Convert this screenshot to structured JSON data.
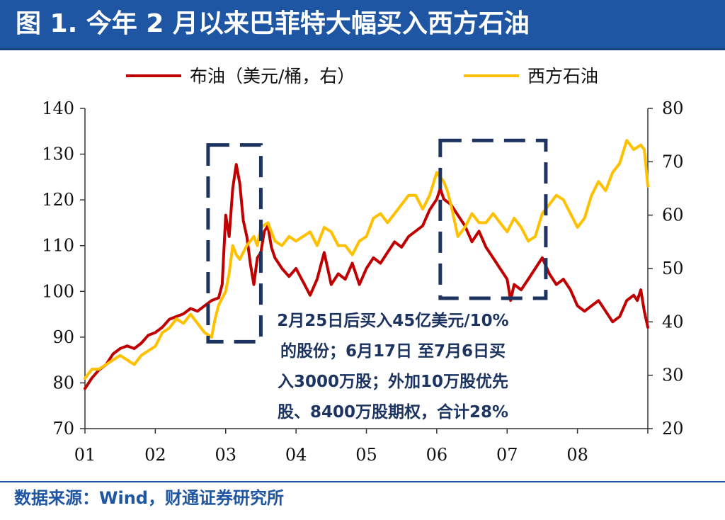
{
  "header": {
    "title": "图 1. 今年 2 月以来巴菲特大幅买入西方石油"
  },
  "footer": {
    "source": "数据来源：Wind，财通证券研究所"
  },
  "colors": {
    "title_bg": "#1f56a3",
    "brent": "#c00000",
    "oxy": "#ffc000",
    "annotation": "#1d3461",
    "axis": "#333333"
  },
  "chart_data": {
    "type": "line",
    "title": "",
    "legend_position": "top",
    "grid": false,
    "x_ticks": [
      "01",
      "02",
      "03",
      "04",
      "05",
      "06",
      "07",
      "08"
    ],
    "x_range": [
      1,
      9
    ],
    "y_left": {
      "range": [
        70,
        140
      ],
      "ticks": [
        70,
        80,
        90,
        100,
        110,
        120,
        130,
        140
      ]
    },
    "y_right": {
      "range": [
        20,
        80
      ],
      "ticks": [
        20,
        30,
        40,
        50,
        60,
        70,
        80
      ]
    },
    "series": [
      {
        "name": "布油（美元/桶，右）",
        "axis": "right",
        "color": "#c00000",
        "points": [
          [
            1.0,
            27.5
          ],
          [
            1.1,
            29.5
          ],
          [
            1.2,
            31
          ],
          [
            1.3,
            32
          ],
          [
            1.4,
            34
          ],
          [
            1.5,
            35
          ],
          [
            1.6,
            35.5
          ],
          [
            1.7,
            35
          ],
          [
            1.8,
            36
          ],
          [
            1.9,
            37.5
          ],
          [
            2.0,
            38
          ],
          [
            2.1,
            39
          ],
          [
            2.2,
            40.5
          ],
          [
            2.3,
            41
          ],
          [
            2.4,
            41.5
          ],
          [
            2.5,
            42.5
          ],
          [
            2.6,
            42
          ],
          [
            2.7,
            43
          ],
          [
            2.8,
            44
          ],
          [
            2.9,
            44.5
          ],
          [
            2.95,
            47
          ],
          [
            3.0,
            60
          ],
          [
            3.05,
            56
          ],
          [
            3.1,
            65
          ],
          [
            3.15,
            69.5
          ],
          [
            3.2,
            66
          ],
          [
            3.25,
            59
          ],
          [
            3.3,
            56
          ],
          [
            3.35,
            51
          ],
          [
            3.4,
            47
          ],
          [
            3.45,
            52
          ],
          [
            3.5,
            53
          ],
          [
            3.55,
            57
          ],
          [
            3.6,
            58
          ],
          [
            3.65,
            54
          ],
          [
            3.7,
            52
          ],
          [
            3.8,
            50
          ],
          [
            3.9,
            48.5
          ],
          [
            4.0,
            50
          ],
          [
            4.1,
            47.5
          ],
          [
            4.2,
            45
          ],
          [
            4.3,
            48
          ],
          [
            4.4,
            53
          ],
          [
            4.5,
            47
          ],
          [
            4.6,
            49
          ],
          [
            4.7,
            48
          ],
          [
            4.8,
            51
          ],
          [
            4.9,
            47
          ],
          [
            5.0,
            50
          ],
          [
            5.1,
            52
          ],
          [
            5.2,
            51
          ],
          [
            5.3,
            53
          ],
          [
            5.4,
            55
          ],
          [
            5.5,
            54
          ],
          [
            5.6,
            56
          ],
          [
            5.7,
            57
          ],
          [
            5.8,
            58
          ],
          [
            5.9,
            61
          ],
          [
            6.0,
            63
          ],
          [
            6.05,
            65
          ],
          [
            6.1,
            63
          ],
          [
            6.2,
            62
          ],
          [
            6.3,
            60
          ],
          [
            6.4,
            58
          ],
          [
            6.5,
            55
          ],
          [
            6.6,
            57
          ],
          [
            6.7,
            54
          ],
          [
            6.8,
            52
          ],
          [
            6.9,
            50
          ],
          [
            7.0,
            48
          ],
          [
            7.05,
            44
          ],
          [
            7.1,
            47
          ],
          [
            7.2,
            46
          ],
          [
            7.3,
            48
          ],
          [
            7.4,
            50
          ],
          [
            7.5,
            52
          ],
          [
            7.6,
            49
          ],
          [
            7.7,
            47
          ],
          [
            7.8,
            48
          ],
          [
            7.9,
            46
          ],
          [
            8.0,
            43
          ],
          [
            8.1,
            42
          ],
          [
            8.2,
            43
          ],
          [
            8.3,
            44
          ],
          [
            8.4,
            42
          ],
          [
            8.5,
            40
          ],
          [
            8.6,
            41
          ],
          [
            8.7,
            44
          ],
          [
            8.8,
            45
          ],
          [
            8.85,
            44
          ],
          [
            8.9,
            46
          ],
          [
            8.95,
            42
          ],
          [
            9.0,
            39
          ]
        ]
      },
      {
        "name": "西方石油",
        "axis": "left",
        "color": "#ffc000",
        "points": [
          [
            1.0,
            81
          ],
          [
            1.1,
            83
          ],
          [
            1.2,
            83
          ],
          [
            1.3,
            84
          ],
          [
            1.4,
            85
          ],
          [
            1.5,
            86
          ],
          [
            1.6,
            85
          ],
          [
            1.7,
            84
          ],
          [
            1.8,
            86
          ],
          [
            1.9,
            87
          ],
          [
            2.0,
            88
          ],
          [
            2.1,
            91
          ],
          [
            2.2,
            92
          ],
          [
            2.3,
            94
          ],
          [
            2.4,
            93
          ],
          [
            2.5,
            95
          ],
          [
            2.6,
            93
          ],
          [
            2.7,
            91
          ],
          [
            2.8,
            90
          ],
          [
            2.85,
            94
          ],
          [
            2.9,
            97
          ],
          [
            3.0,
            100
          ],
          [
            3.05,
            104
          ],
          [
            3.1,
            110
          ],
          [
            3.15,
            108
          ],
          [
            3.2,
            107
          ],
          [
            3.3,
            110
          ],
          [
            3.4,
            112
          ],
          [
            3.45,
            110
          ],
          [
            3.5,
            114
          ],
          [
            3.6,
            115
          ],
          [
            3.7,
            111
          ],
          [
            3.8,
            110
          ],
          [
            3.9,
            112
          ],
          [
            4.0,
            111
          ],
          [
            4.1,
            112
          ],
          [
            4.2,
            113
          ],
          [
            4.3,
            110
          ],
          [
            4.4,
            114
          ],
          [
            4.5,
            113
          ],
          [
            4.6,
            110
          ],
          [
            4.7,
            110
          ],
          [
            4.8,
            108
          ],
          [
            4.9,
            111
          ],
          [
            5.0,
            112
          ],
          [
            5.1,
            116
          ],
          [
            5.2,
            117
          ],
          [
            5.3,
            115
          ],
          [
            5.4,
            117
          ],
          [
            5.5,
            119
          ],
          [
            5.6,
            121
          ],
          [
            5.7,
            121
          ],
          [
            5.8,
            118
          ],
          [
            5.9,
            121
          ],
          [
            6.0,
            126
          ],
          [
            6.05,
            125
          ],
          [
            6.1,
            124
          ],
          [
            6.15,
            122
          ],
          [
            6.2,
            119
          ],
          [
            6.3,
            112
          ],
          [
            6.4,
            114
          ],
          [
            6.5,
            117
          ],
          [
            6.6,
            115
          ],
          [
            6.7,
            115
          ],
          [
            6.8,
            117
          ],
          [
            6.9,
            115
          ],
          [
            7.0,
            113
          ],
          [
            7.1,
            116
          ],
          [
            7.2,
            114
          ],
          [
            7.3,
            111
          ],
          [
            7.4,
            112
          ],
          [
            7.5,
            117
          ],
          [
            7.6,
            119
          ],
          [
            7.7,
            121
          ],
          [
            7.8,
            120
          ],
          [
            7.9,
            117
          ],
          [
            8.0,
            114
          ],
          [
            8.1,
            116
          ],
          [
            8.2,
            121
          ],
          [
            8.3,
            124
          ],
          [
            8.4,
            122
          ],
          [
            8.5,
            126
          ],
          [
            8.6,
            128
          ],
          [
            8.7,
            133
          ],
          [
            8.8,
            131
          ],
          [
            8.9,
            132
          ],
          [
            8.95,
            131
          ],
          [
            9.0,
            123
          ]
        ]
      }
    ],
    "annotation": {
      "lines": [
        "2月25日后买入45亿美元/10%",
        "的股份；6月17日 至7月6日买",
        "入3000万股；外加10万股优先",
        "股、8400万股期权，合计28%"
      ],
      "highlight_ranges": [
        {
          "x": [
            2.75,
            3.5
          ],
          "y_left": [
            89,
            132
          ]
        },
        {
          "x": [
            6.05,
            7.55
          ],
          "y_left": [
            98.5,
            133
          ]
        }
      ]
    }
  }
}
